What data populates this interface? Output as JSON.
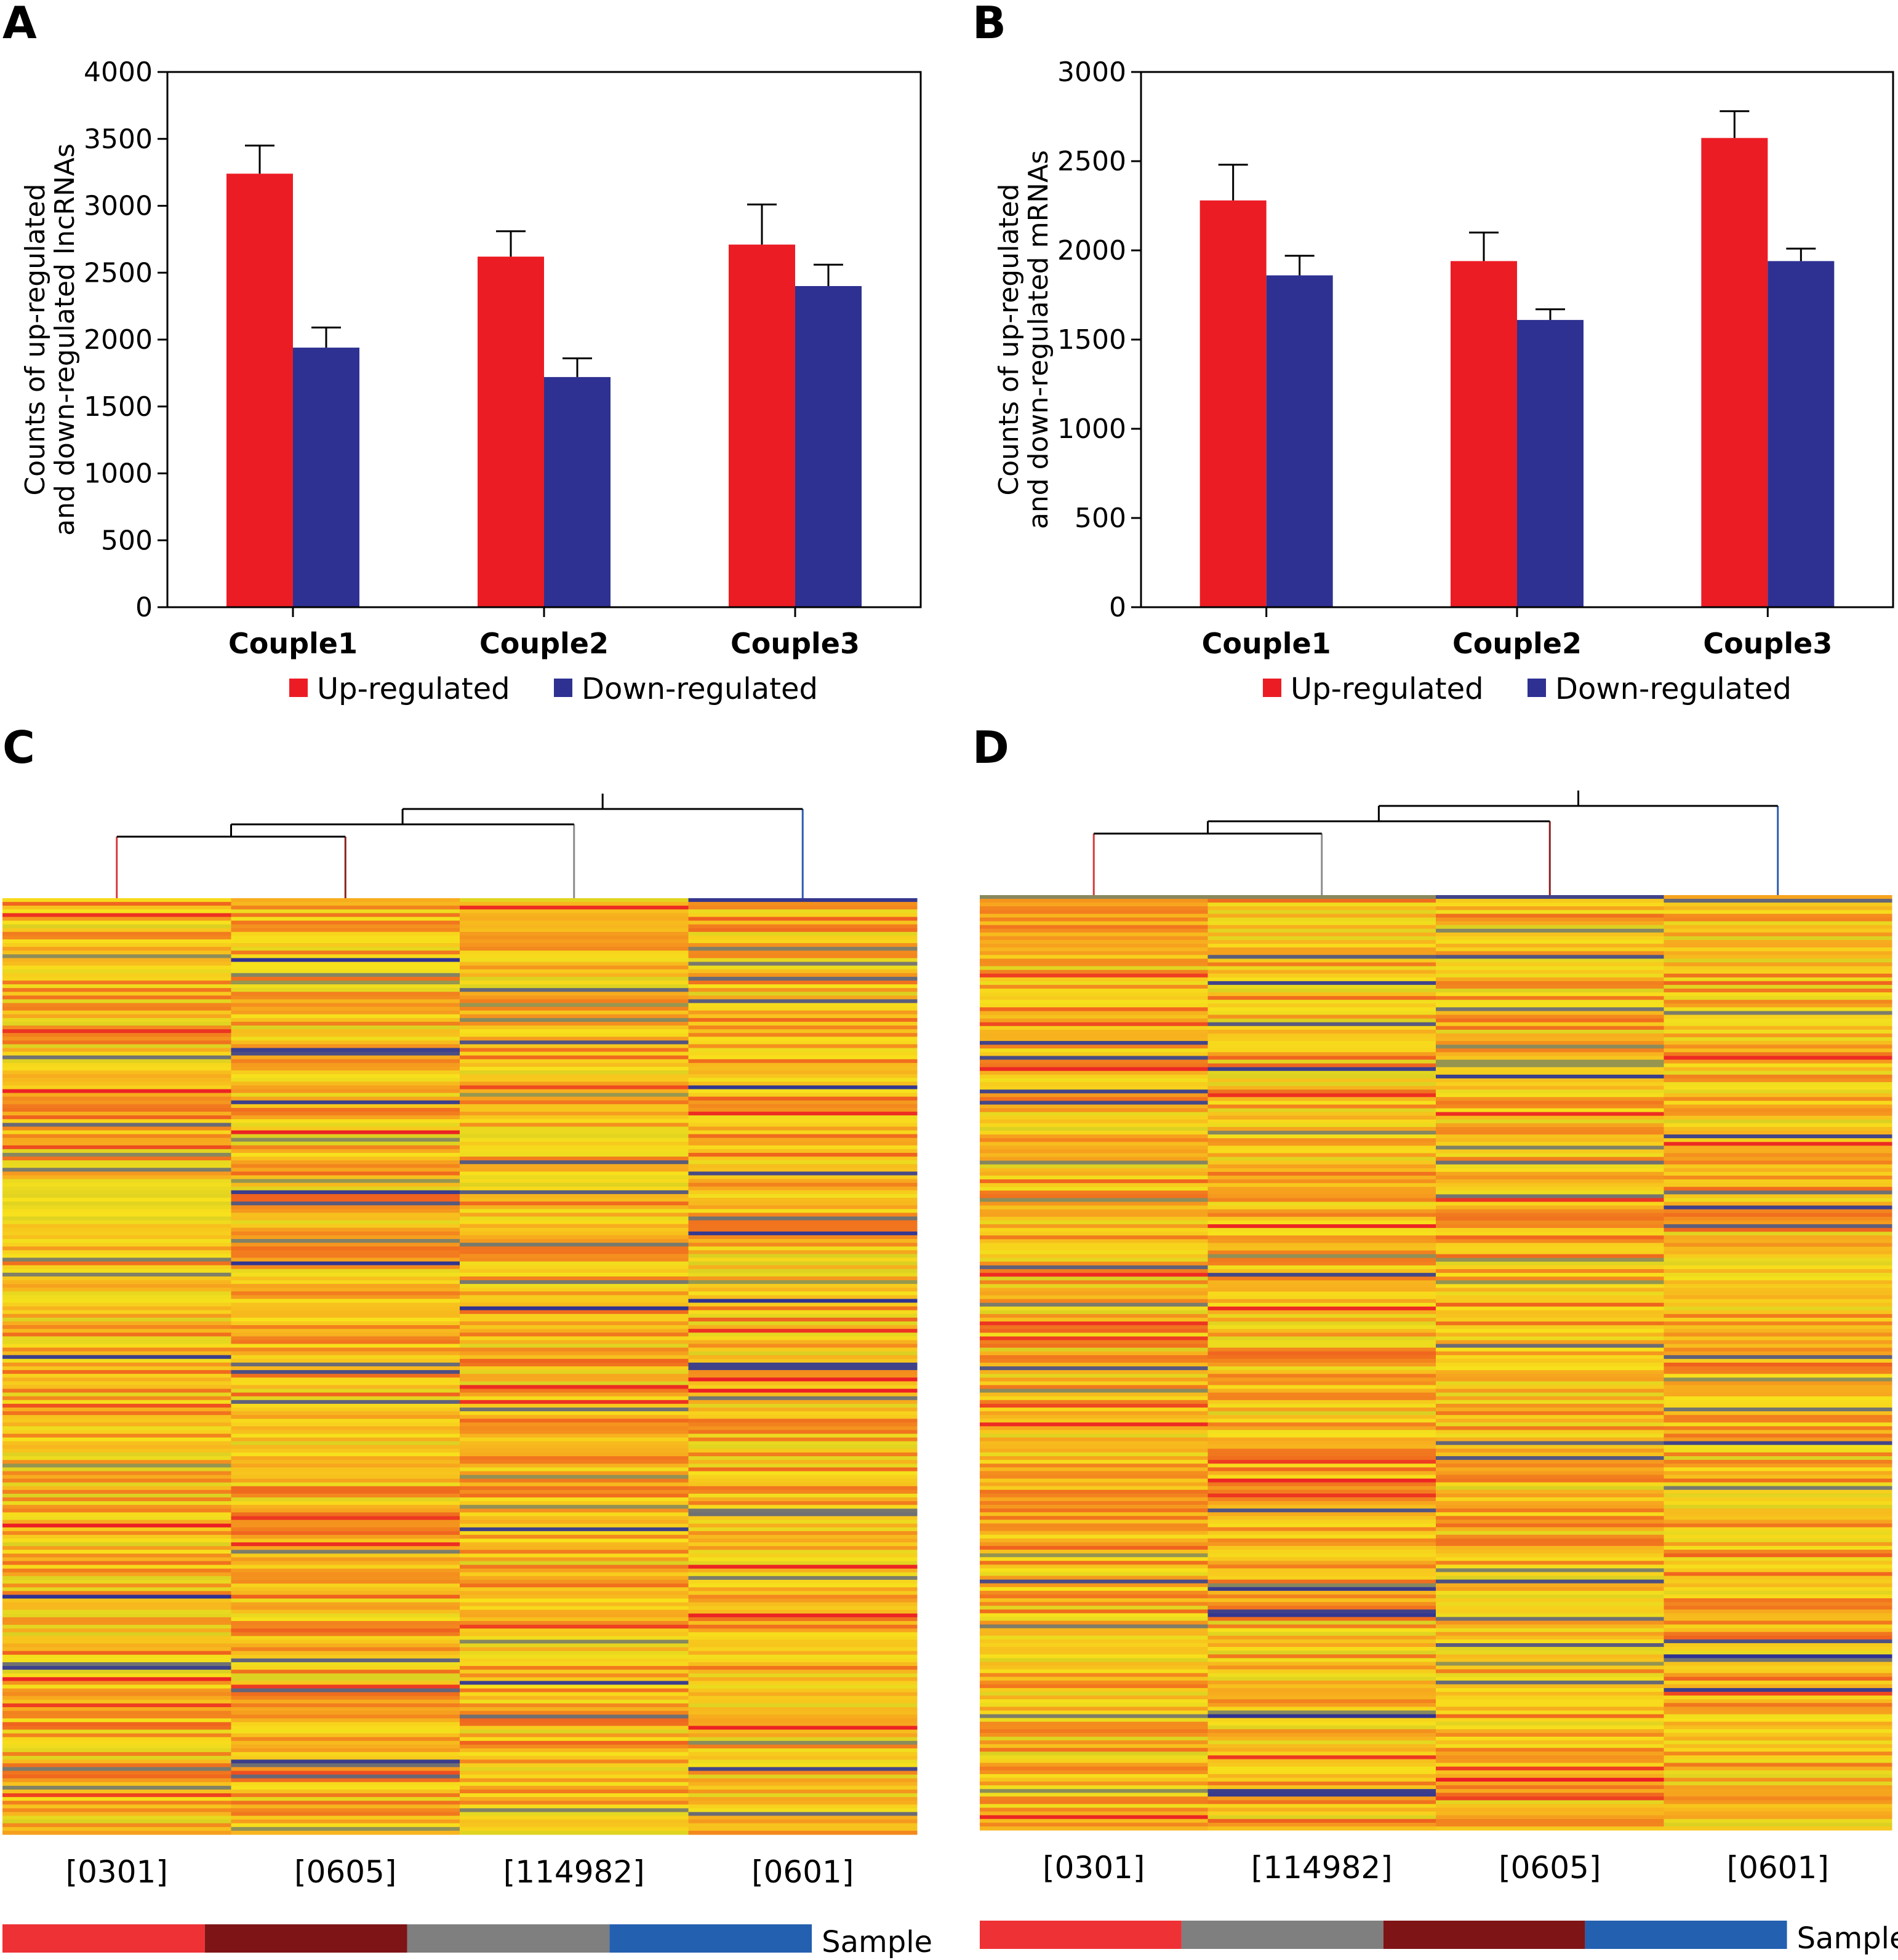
{
  "panels": {
    "A": "A",
    "B": "B",
    "C": "C",
    "D": "D"
  },
  "legend": {
    "up": "Up-regulated",
    "down": "Down-regulated"
  },
  "colors": {
    "up": "#ec1c24",
    "down": "#2e3192",
    "heat_low": "#2e3192",
    "heat_mid": "#f7e11c",
    "heat_high": "#ec1c24",
    "sample_0301": "#ee3135",
    "sample_0605": "#7f1416",
    "sample_114982": "#7f7f7f",
    "sample_0601": "#2460b0",
    "dendro_0301": "#d83a3a",
    "dendro_0605": "#8b2020",
    "dendro_114982": "#8c8c8c",
    "dendro_0601": "#2f5bb0"
  },
  "chart_data": [
    {
      "panel": "A",
      "type": "bar",
      "categories": [
        "Couple1",
        "Couple2",
        "Couple3"
      ],
      "series": [
        {
          "name": "Up-regulated",
          "values": [
            3240,
            2620,
            2710
          ],
          "errors": [
            210,
            190,
            300
          ]
        },
        {
          "name": "Down-regulated",
          "values": [
            1940,
            1720,
            2400
          ],
          "errors": [
            150,
            140,
            160
          ]
        }
      ],
      "ylabel_line1": "Counts of up-regulated",
      "ylabel_line2": "and down-regulated lncRNAs",
      "ylim": [
        0,
        4000
      ],
      "yticks": [
        0,
        500,
        1000,
        1500,
        2000,
        2500,
        3000,
        3500,
        4000
      ],
      "legend_position": "bottom"
    },
    {
      "panel": "B",
      "type": "bar",
      "categories": [
        "Couple1",
        "Couple2",
        "Couple3"
      ],
      "series": [
        {
          "name": "Up-regulated",
          "values": [
            2280,
            1940,
            2630
          ],
          "errors": [
            200,
            160,
            150
          ]
        },
        {
          "name": "Down-regulated",
          "values": [
            1860,
            1610,
            1940
          ],
          "errors": [
            110,
            60,
            70
          ]
        }
      ],
      "ylabel_line1": "Counts of up-regulated",
      "ylabel_line2": "and down-regulated mRNAs",
      "ylim": [
        0,
        3000
      ],
      "yticks": [
        0,
        500,
        1000,
        1500,
        2000,
        2500,
        3000
      ],
      "legend_position": "bottom"
    },
    {
      "panel": "C",
      "type": "heatmap",
      "columns": [
        "[0301]",
        "[0605]",
        "[114982]",
        "[0601]"
      ],
      "sample_order": [
        "0301",
        "0605",
        "114982",
        "0601"
      ],
      "sample_label": "Sample",
      "seed": 7
    },
    {
      "panel": "D",
      "type": "heatmap",
      "columns": [
        "[0301]",
        "[114982]",
        "[0605]",
        "[0601]"
      ],
      "sample_order": [
        "0301",
        "114982",
        "0605",
        "0601"
      ],
      "sample_label": "Sample",
      "seed": 19
    }
  ]
}
